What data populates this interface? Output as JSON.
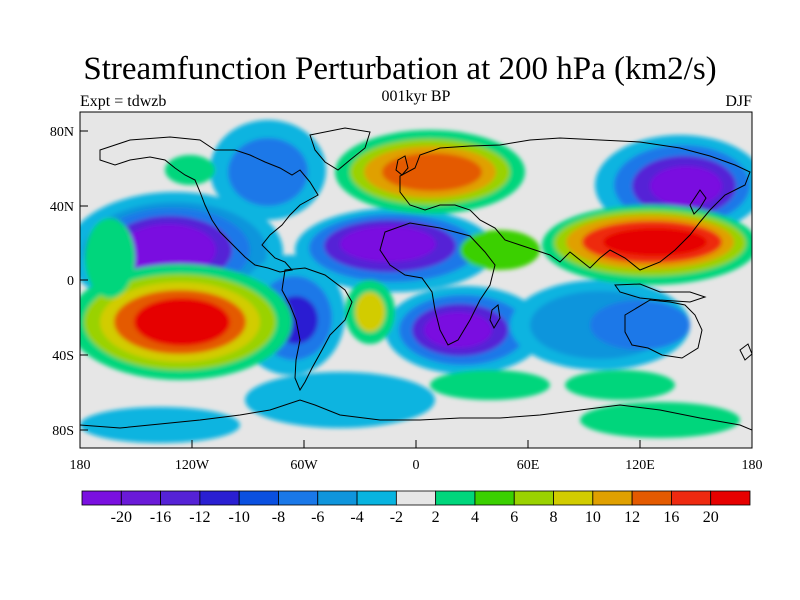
{
  "title": "Streamfunction Perturbation at 200 hPa (km2/s)",
  "left_string": "Expt = tdwzb",
  "center_string": "001kyr BP",
  "right_string": "DJF",
  "axes": {
    "lat_ticks": [
      "80N",
      "40N",
      "0",
      "40S",
      "80S"
    ],
    "lon_ticks": [
      "180",
      "120W",
      "60W",
      "0",
      "60E",
      "120E",
      "180"
    ]
  },
  "colorbar": {
    "colors": [
      "#7a10e0",
      "#6a1ad8",
      "#5522d6",
      "#2a1fd2",
      "#0a50e0",
      "#1a78e8",
      "#0f95dc",
      "#08b4e0",
      "#e6e6e6",
      "#00d67c",
      "#3ad000",
      "#9ad200",
      "#d2cc00",
      "#e0a000",
      "#e45a00",
      "#ee2a10",
      "#e60000"
    ],
    "labels": [
      "-20",
      "-16",
      "-12",
      "-10",
      "-8",
      "-6",
      "-4",
      "-2",
      "2",
      "4",
      "6",
      "8",
      "10",
      "12",
      "16",
      "20"
    ]
  },
  "chart_data": {
    "type": "map",
    "title": "Streamfunction Perturbation at 200 hPa (km2/s)",
    "variable": "streamfunction perturbation",
    "level_hPa": 200,
    "units": "km2/s",
    "experiment": "tdwzb",
    "period": "001kyr BP",
    "season": "DJF",
    "lon_range": [
      -180,
      180
    ],
    "lat_range": [
      -90,
      90
    ],
    "contour_levels": [
      -20,
      -16,
      -12,
      -10,
      -8,
      -6,
      -4,
      -2,
      2,
      4,
      6,
      8,
      10,
      12,
      16,
      20
    ],
    "features": [
      {
        "lon": -140,
        "lat": 20,
        "value": -20
      },
      {
        "lon": -10,
        "lat": 18,
        "value": -20
      },
      {
        "lon": 22,
        "lat": -25,
        "value": -20
      },
      {
        "lon": 145,
        "lat": 50,
        "value": -20
      },
      {
        "lon": -70,
        "lat": -18,
        "value": -12
      },
      {
        "lon": -130,
        "lat": -22,
        "value": 20
      },
      {
        "lon": 110,
        "lat": 20,
        "value": 20
      },
      {
        "lon": 15,
        "lat": 55,
        "value": 16
      },
      {
        "lon": -110,
        "lat": 70,
        "value": -6
      },
      {
        "lon": 100,
        "lat": -30,
        "value": -8
      }
    ]
  }
}
